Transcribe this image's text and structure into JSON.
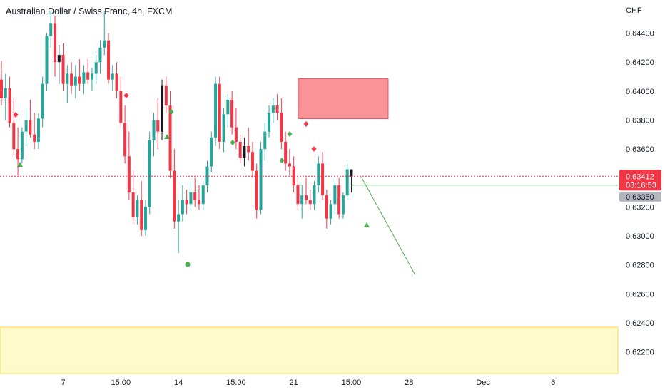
{
  "header": {
    "title": "Australian Dollar / Swiss Franc, 4h, FXCM"
  },
  "colors": {
    "up": "#26a69a",
    "down": "#f23645",
    "neutral_candle": "#131722",
    "supply_zone": "#f77c80",
    "demand_zone": "#fff59d",
    "projection": "#4caf50",
    "current_price": "#f23645",
    "level_tag": "#b2b5be"
  },
  "chart_data": {
    "type": "candlestick",
    "title": "Australian Dollar / Swiss Franc, 4h, FXCM",
    "ylabel": "CHF",
    "ylim": [
      0.6205,
      0.6458
    ],
    "y_ticks": [
      "0.64400",
      "0.64200",
      "0.64000",
      "0.63800",
      "0.63600",
      "0.63400",
      "0.63200",
      "0.63000",
      "0.62800",
      "0.62600",
      "0.62400",
      "0.62200"
    ],
    "x_ticks": [
      "7",
      "15:00",
      "14",
      "15:00",
      "21",
      "15:00",
      "28",
      "Dec",
      "6"
    ],
    "x_tick_index": [
      15,
      29,
      43,
      57,
      71,
      85,
      99,
      117,
      134
    ],
    "grid": false,
    "candles": [
      [
        0.6408,
        0.6421,
        0.639,
        0.6395
      ],
      [
        0.6395,
        0.6412,
        0.638,
        0.6402
      ],
      [
        0.6402,
        0.641,
        0.6375,
        0.6378
      ],
      [
        0.6378,
        0.6395,
        0.6356,
        0.636
      ],
      [
        0.636,
        0.6375,
        0.6342,
        0.6353
      ],
      [
        0.6353,
        0.6375,
        0.635,
        0.6372
      ],
      [
        0.6372,
        0.6388,
        0.6362,
        0.638
      ],
      [
        0.638,
        0.6394,
        0.6368,
        0.637
      ],
      [
        0.637,
        0.6385,
        0.636,
        0.6365
      ],
      [
        0.6365,
        0.6385,
        0.636,
        0.6381
      ],
      [
        0.6381,
        0.641,
        0.6375,
        0.6405
      ],
      [
        0.6405,
        0.644,
        0.64,
        0.6438
      ],
      [
        0.6438,
        0.6455,
        0.643,
        0.6447
      ],
      [
        0.6447,
        0.6452,
        0.641,
        0.642
      ],
      [
        0.642,
        0.6432,
        0.6405,
        0.6425
      ],
      [
        0.6425,
        0.6433,
        0.64,
        0.6405
      ],
      [
        0.6405,
        0.6418,
        0.6392,
        0.6412
      ],
      [
        0.6412,
        0.642,
        0.6398,
        0.6404
      ],
      [
        0.6404,
        0.6418,
        0.6395,
        0.641
      ],
      [
        0.641,
        0.6422,
        0.64,
        0.6405
      ],
      [
        0.6405,
        0.6418,
        0.6398,
        0.6413
      ],
      [
        0.6413,
        0.6422,
        0.6405,
        0.6408
      ],
      [
        0.6408,
        0.6416,
        0.64,
        0.6412
      ],
      [
        0.6412,
        0.6425,
        0.6405,
        0.642
      ],
      [
        0.642,
        0.6435,
        0.6412,
        0.643
      ],
      [
        0.643,
        0.6455,
        0.6425,
        0.6435
      ],
      [
        0.6435,
        0.644,
        0.6405,
        0.6408
      ],
      [
        0.6408,
        0.6418,
        0.64,
        0.6412
      ],
      [
        0.6412,
        0.642,
        0.6395,
        0.64
      ],
      [
        0.64,
        0.641,
        0.6375,
        0.6378
      ],
      [
        0.6378,
        0.639,
        0.635,
        0.6355
      ],
      [
        0.6355,
        0.6372,
        0.6325,
        0.633
      ],
      [
        0.633,
        0.6345,
        0.6308,
        0.6313
      ],
      [
        0.6313,
        0.6328,
        0.6308,
        0.6325
      ],
      [
        0.6325,
        0.6338,
        0.63,
        0.6304
      ],
      [
        0.6304,
        0.6325,
        0.63,
        0.632
      ],
      [
        0.632,
        0.6372,
        0.6315,
        0.6366
      ],
      [
        0.6366,
        0.6385,
        0.6355,
        0.638
      ],
      [
        0.638,
        0.6395,
        0.636,
        0.6372
      ],
      [
        0.6372,
        0.6408,
        0.6366,
        0.6404
      ],
      [
        0.6404,
        0.641,
        0.6385,
        0.639
      ],
      [
        0.639,
        0.64,
        0.634,
        0.6345
      ],
      [
        0.6345,
        0.636,
        0.6305,
        0.631
      ],
      [
        0.631,
        0.6325,
        0.6288,
        0.6315
      ],
      [
        0.6315,
        0.6335,
        0.631,
        0.6325
      ],
      [
        0.6325,
        0.6332,
        0.6315,
        0.6322
      ],
      [
        0.6322,
        0.6338,
        0.6318,
        0.633
      ],
      [
        0.633,
        0.634,
        0.632,
        0.6325
      ],
      [
        0.6325,
        0.6335,
        0.6318,
        0.6322
      ],
      [
        0.6322,
        0.6338,
        0.6318,
        0.6335
      ],
      [
        0.6335,
        0.6352,
        0.633,
        0.6348
      ],
      [
        0.6348,
        0.6372,
        0.6344,
        0.6368
      ],
      [
        0.6368,
        0.641,
        0.6362,
        0.6405
      ],
      [
        0.6405,
        0.641,
        0.636,
        0.6365
      ],
      [
        0.6365,
        0.6388,
        0.6358,
        0.6384
      ],
      [
        0.6384,
        0.6398,
        0.6375,
        0.6394
      ],
      [
        0.6394,
        0.64,
        0.637,
        0.6375
      ],
      [
        0.6375,
        0.6388,
        0.636,
        0.6365
      ],
      [
        0.6365,
        0.637,
        0.635,
        0.6354
      ],
      [
        0.6354,
        0.6368,
        0.6348,
        0.6362
      ],
      [
        0.6362,
        0.6375,
        0.6352,
        0.6358
      ],
      [
        0.6358,
        0.6365,
        0.634,
        0.6345
      ],
      [
        0.6345,
        0.635,
        0.6312,
        0.6318
      ],
      [
        0.6318,
        0.6365,
        0.6315,
        0.636
      ],
      [
        0.636,
        0.6378,
        0.6352,
        0.6372
      ],
      [
        0.6372,
        0.639,
        0.6368,
        0.6385
      ],
      [
        0.6385,
        0.6395,
        0.6378,
        0.639
      ],
      [
        0.639,
        0.6398,
        0.638,
        0.6385
      ],
      [
        0.6385,
        0.6395,
        0.636,
        0.6365
      ],
      [
        0.6365,
        0.6372,
        0.6345,
        0.635
      ],
      [
        0.635,
        0.636,
        0.6342,
        0.6348
      ],
      [
        0.6348,
        0.6355,
        0.633,
        0.6335
      ],
      [
        0.6335,
        0.634,
        0.6318,
        0.6322
      ],
      [
        0.6322,
        0.6335,
        0.6312,
        0.6328
      ],
      [
        0.6328,
        0.634,
        0.6322,
        0.6325
      ],
      [
        0.6325,
        0.6332,
        0.6318,
        0.6322
      ],
      [
        0.6322,
        0.6338,
        0.6318,
        0.6335
      ],
      [
        0.6335,
        0.6355,
        0.633,
        0.635
      ],
      [
        0.635,
        0.6358,
        0.6325,
        0.6328
      ],
      [
        0.6328,
        0.6332,
        0.6305,
        0.6312
      ],
      [
        0.6312,
        0.6325,
        0.6308,
        0.6322
      ],
      [
        0.6322,
        0.6338,
        0.6315,
        0.6335
      ],
      [
        0.6335,
        0.634,
        0.6312,
        0.6315
      ],
      [
        0.6315,
        0.633,
        0.6312,
        0.6328
      ],
      [
        0.6328,
        0.635,
        0.6325,
        0.6346
      ],
      [
        0.6346,
        0.6346,
        0.633,
        0.6341
      ]
    ],
    "supply_zone": {
      "top": 0.64085,
      "bottom": 0.6381
    },
    "demand_zone": {
      "top": 0.6237,
      "bottom": 0.6205
    },
    "current_price": 0.63412,
    "current_price_label": "0.63412",
    "countdown": "03:16:53",
    "level_line": 0.6335,
    "level_label": "0.63350",
    "projection": {
      "from_index": 87,
      "from_price": 0.6341,
      "to_index": 95,
      "to_price": 0.6273
    }
  }
}
